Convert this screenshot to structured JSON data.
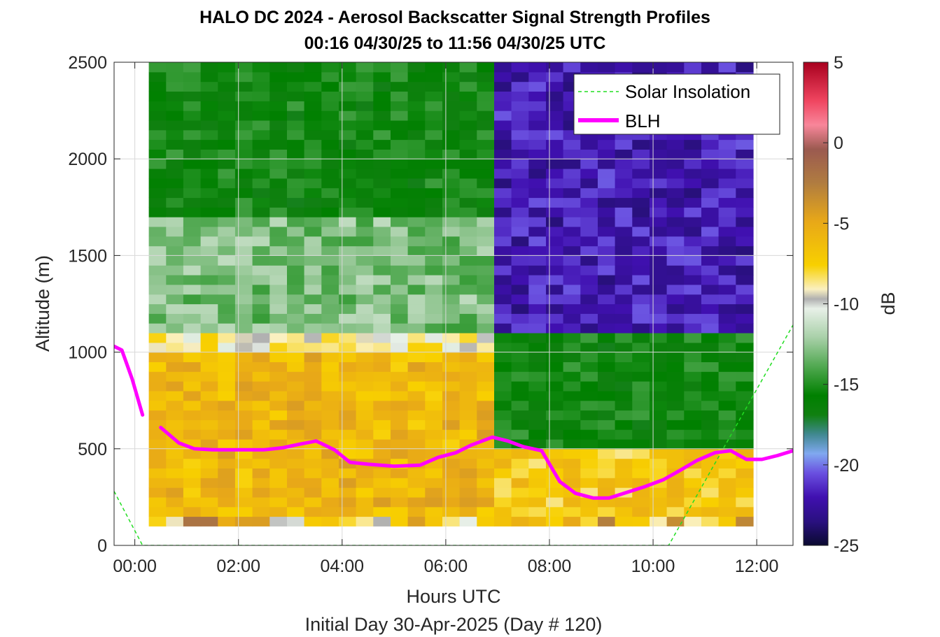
{
  "title": {
    "line1": "HALO DC 2024 - Aerosol Backscatter Signal Strength Profiles",
    "line2": "00:16 04/30/25 to 11:56 04/30/25  UTC"
  },
  "chart_data": {
    "type": "heatmap",
    "xlabel": "Hours UTC",
    "ylabel": "Altitude (m)",
    "footer": "Initial Day 30-Apr-2025 (Day # 120)",
    "xlim": [
      -0.4,
      12.7
    ],
    "ylim": [
      0,
      2500
    ],
    "x_ticks": [
      0,
      2,
      4,
      6,
      8,
      10,
      12
    ],
    "x_tick_labels": [
      "00:00",
      "02:00",
      "04:00",
      "06:00",
      "08:00",
      "10:00",
      "12:00"
    ],
    "y_ticks": [
      0,
      500,
      1000,
      1500,
      2000,
      2500
    ],
    "y_tick_labels": [
      "0",
      "500",
      "1000",
      "1500",
      "2000",
      "2500"
    ],
    "grid": true,
    "colorbar": {
      "label": "dB",
      "range": [
        -25,
        5
      ],
      "ticks": [
        5,
        0,
        -5,
        -10,
        -15,
        -20,
        -25
      ],
      "tick_labels": [
        "5",
        "0",
        "-5",
        "-10",
        "-15",
        "-20",
        "-25"
      ]
    },
    "heatmap_summary": {
      "time_range_hours": [
        0.27,
        11.93
      ],
      "altitude_range_m": [
        100,
        2500
      ],
      "regimes": [
        {
          "hours": [
            0.27,
            6.95
          ],
          "altitude_m": [
            100,
            1000
          ],
          "approx_dB": -6
        },
        {
          "hours": [
            0.27,
            6.95
          ],
          "altitude_m": [
            1000,
            1100
          ],
          "approx_dB": -9
        },
        {
          "hours": [
            0.27,
            6.95
          ],
          "altitude_m": [
            1100,
            1700
          ],
          "approx_dB": -13
        },
        {
          "hours": [
            0.27,
            6.95
          ],
          "altitude_m": [
            1700,
            2500
          ],
          "approx_dB": -16
        },
        {
          "hours": [
            6.95,
            11.93
          ],
          "altitude_m": [
            100,
            500
          ],
          "approx_dB": -7
        },
        {
          "hours": [
            6.95,
            11.93
          ],
          "altitude_m": [
            500,
            1100
          ],
          "approx_dB": -16
        },
        {
          "hours": [
            6.95,
            11.93
          ],
          "altitude_m": [
            1100,
            2500
          ],
          "approx_dB": -22
        }
      ]
    },
    "series": [
      {
        "name": "BLH",
        "color": "#ff00ff",
        "segments": [
          {
            "x": [
              -0.4,
              -0.25,
              -0.05,
              0.15
            ],
            "y": [
              1030,
              1010,
              860,
              675
            ]
          },
          {
            "x": [
              0.5,
              0.85,
              1.15,
              1.5,
              2.0,
              2.5,
              2.85,
              3.2,
              3.5,
              3.85,
              4.15,
              4.5,
              5.0,
              5.5,
              5.85,
              6.2,
              6.5,
              6.9,
              7.2,
              7.5,
              7.85,
              8.2,
              8.5,
              8.85,
              9.15,
              9.5,
              9.85,
              10.2,
              10.5,
              10.85,
              11.2,
              11.5,
              11.8,
              12.1,
              12.4,
              12.7
            ],
            "y": [
              610,
              530,
              500,
              495,
              495,
              495,
              505,
              525,
              540,
              495,
              430,
              420,
              410,
              415,
              455,
              480,
              520,
              560,
              540,
              510,
              490,
              330,
              270,
              245,
              245,
              275,
              305,
              340,
              385,
              440,
              480,
              490,
              445,
              445,
              465,
              490
            ]
          }
        ]
      },
      {
        "name": "Solar Insolation",
        "color": "#22dd22",
        "style": "dashed",
        "x": [
          -0.4,
          0.15,
          10.3,
          12.7
        ],
        "y": [
          280,
          0,
          0,
          1140
        ]
      }
    ],
    "legend": {
      "position": "top-right",
      "entries": [
        "Solar Insolation",
        "BLH"
      ]
    }
  }
}
